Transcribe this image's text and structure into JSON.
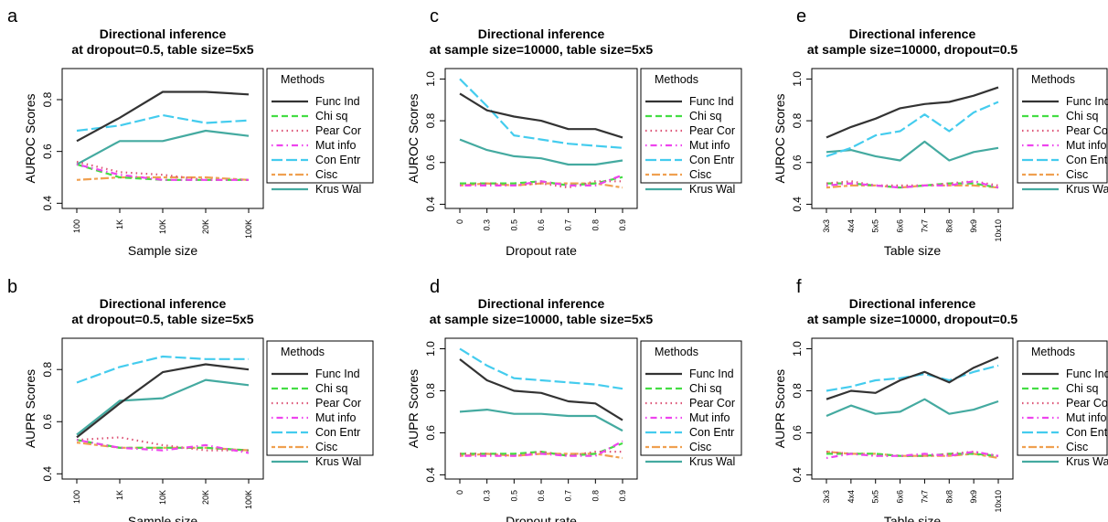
{
  "legend": {
    "title": "Methods",
    "items": [
      {
        "name": "Func Ind",
        "color": "#333333",
        "dash": "solid"
      },
      {
        "name": "Chi sq",
        "color": "#44dd44",
        "dash": "dashed"
      },
      {
        "name": "Pear Cor",
        "color": "#dd5577",
        "dash": "dotted"
      },
      {
        "name": "Mut info",
        "color": "#ee44ee",
        "dash": "dotdash"
      },
      {
        "name": "Con Entr",
        "color": "#44ccee",
        "dash": "longdash"
      },
      {
        "name": "Cisc",
        "color": "#f0a050",
        "dash": "twodash"
      },
      {
        "name": "Krus Wal",
        "color": "#44aaa0",
        "dash": "solid"
      }
    ]
  },
  "chart_data": [
    {
      "panel": "a",
      "type": "line",
      "title": [
        "Directional inference",
        "at dropout=0.5, table size=5x5"
      ],
      "xlabel": "Sample size",
      "ylabel": "AUROC Scores",
      "categories": [
        "100",
        "1K",
        "10K",
        "20K",
        "100K"
      ],
      "ylim": [
        0.38,
        0.92
      ],
      "yticks": [
        "0.4",
        "0.6",
        "0.8"
      ],
      "series": [
        {
          "name": "Func Ind",
          "values": [
            0.64,
            0.73,
            0.83,
            0.83,
            0.82
          ]
        },
        {
          "name": "Chi sq",
          "values": [
            0.55,
            0.5,
            0.49,
            0.49,
            0.49
          ]
        },
        {
          "name": "Pear Cor",
          "values": [
            0.56,
            0.52,
            0.51,
            0.49,
            0.49
          ]
        },
        {
          "name": "Mut info",
          "values": [
            0.55,
            0.51,
            0.49,
            0.49,
            0.49
          ]
        },
        {
          "name": "Con Entr",
          "values": [
            0.68,
            0.7,
            0.74,
            0.71,
            0.72
          ]
        },
        {
          "name": "Cisc",
          "values": [
            0.49,
            0.5,
            0.5,
            0.5,
            0.49
          ]
        },
        {
          "name": "Krus Wal",
          "values": [
            0.55,
            0.64,
            0.64,
            0.68,
            0.66
          ]
        }
      ]
    },
    {
      "panel": "c",
      "type": "line",
      "title": [
        "Directional inference",
        "at sample size=10000, table size=5x5"
      ],
      "xlabel": "Dropout rate",
      "ylabel": "AUROC Scores",
      "categories": [
        "0",
        "0.3",
        "0.5",
        "0.6",
        "0.7",
        "0.8",
        "0.9"
      ],
      "ylim": [
        0.38,
        1.05
      ],
      "yticks": [
        "0.4",
        "0.6",
        "0.8",
        "1.0"
      ],
      "series": [
        {
          "name": "Func Ind",
          "values": [
            0.93,
            0.85,
            0.82,
            0.8,
            0.76,
            0.76,
            0.72
          ]
        },
        {
          "name": "Chi sq",
          "values": [
            0.5,
            0.5,
            0.5,
            0.51,
            0.49,
            0.5,
            0.53
          ]
        },
        {
          "name": "Pear Cor",
          "values": [
            0.49,
            0.5,
            0.49,
            0.5,
            0.48,
            0.51,
            0.51
          ]
        },
        {
          "name": "Mut info",
          "values": [
            0.49,
            0.49,
            0.49,
            0.51,
            0.49,
            0.49,
            0.54
          ]
        },
        {
          "name": "Con Entr",
          "values": [
            1.0,
            0.87,
            0.73,
            0.71,
            0.69,
            0.68,
            0.67
          ]
        },
        {
          "name": "Cisc",
          "values": [
            0.49,
            0.5,
            0.49,
            0.5,
            0.5,
            0.5,
            0.48
          ]
        },
        {
          "name": "Krus Wal",
          "values": [
            0.71,
            0.66,
            0.63,
            0.62,
            0.59,
            0.59,
            0.61
          ]
        }
      ]
    },
    {
      "panel": "e",
      "type": "line",
      "title": [
        "Directional inference",
        "at sample size=10000, dropout=0.5"
      ],
      "xlabel": "Table size",
      "ylabel": "AUROC Scores",
      "categories": [
        "3x3",
        "4x4",
        "5x5",
        "6x6",
        "7x7",
        "8x8",
        "9x9",
        "10x10"
      ],
      "ylim": [
        0.38,
        1.05
      ],
      "yticks": [
        "0.4",
        "0.6",
        "0.8",
        "1.0"
      ],
      "series": [
        {
          "name": "Func Ind",
          "values": [
            0.72,
            0.77,
            0.81,
            0.86,
            0.88,
            0.89,
            0.92,
            0.96
          ]
        },
        {
          "name": "Chi sq",
          "values": [
            0.5,
            0.5,
            0.49,
            0.48,
            0.49,
            0.5,
            0.5,
            0.48
          ]
        },
        {
          "name": "Pear Cor",
          "values": [
            0.5,
            0.51,
            0.49,
            0.49,
            0.49,
            0.5,
            0.51,
            0.49
          ]
        },
        {
          "name": "Mut info",
          "values": [
            0.49,
            0.5,
            0.49,
            0.48,
            0.49,
            0.49,
            0.51,
            0.48
          ]
        },
        {
          "name": "Con Entr",
          "values": [
            0.63,
            0.67,
            0.73,
            0.75,
            0.83,
            0.75,
            0.84,
            0.89
          ]
        },
        {
          "name": "Cisc",
          "values": [
            0.48,
            0.49,
            0.49,
            0.48,
            0.49,
            0.49,
            0.49,
            0.48
          ]
        },
        {
          "name": "Krus Wal",
          "values": [
            0.65,
            0.66,
            0.63,
            0.61,
            0.7,
            0.61,
            0.65,
            0.67
          ]
        }
      ]
    },
    {
      "panel": "b",
      "type": "line",
      "title": [
        "Directional inference",
        "at dropout=0.5, table size=5x5"
      ],
      "xlabel": "Sample size",
      "ylabel": "AUPR Scores",
      "categories": [
        "100",
        "1K",
        "10K",
        "20K",
        "100K"
      ],
      "ylim": [
        0.38,
        0.92
      ],
      "yticks": [
        "0.4",
        "0.6",
        "0.8"
      ],
      "series": [
        {
          "name": "Func Ind",
          "values": [
            0.54,
            0.67,
            0.79,
            0.82,
            0.8
          ]
        },
        {
          "name": "Chi sq",
          "values": [
            0.53,
            0.5,
            0.5,
            0.5,
            0.49
          ]
        },
        {
          "name": "Pear Cor",
          "values": [
            0.53,
            0.54,
            0.51,
            0.49,
            0.49
          ]
        },
        {
          "name": "Mut info",
          "values": [
            0.53,
            0.5,
            0.49,
            0.51,
            0.48
          ]
        },
        {
          "name": "Con Entr",
          "values": [
            0.75,
            0.81,
            0.85,
            0.84,
            0.84
          ]
        },
        {
          "name": "Cisc",
          "values": [
            0.52,
            0.5,
            0.5,
            0.5,
            0.49
          ]
        },
        {
          "name": "Krus Wal",
          "values": [
            0.55,
            0.68,
            0.69,
            0.76,
            0.74
          ]
        }
      ]
    },
    {
      "panel": "d",
      "type": "line",
      "title": [
        "Directional inference",
        "at sample size=10000, table size=5x5"
      ],
      "xlabel": "Dropout rate",
      "ylabel": "AUPR Scores",
      "categories": [
        "0",
        "0.3",
        "0.5",
        "0.6",
        "0.7",
        "0.8",
        "0.9"
      ],
      "ylim": [
        0.38,
        1.05
      ],
      "yticks": [
        "0.4",
        "0.6",
        "0.8",
        "1.0"
      ],
      "series": [
        {
          "name": "Func Ind",
          "values": [
            0.95,
            0.85,
            0.8,
            0.79,
            0.75,
            0.74,
            0.66
          ]
        },
        {
          "name": "Chi sq",
          "values": [
            0.5,
            0.5,
            0.5,
            0.51,
            0.49,
            0.5,
            0.55
          ]
        },
        {
          "name": "Pear Cor",
          "values": [
            0.5,
            0.5,
            0.49,
            0.51,
            0.49,
            0.51,
            0.51
          ]
        },
        {
          "name": "Mut info",
          "values": [
            0.49,
            0.49,
            0.49,
            0.5,
            0.49,
            0.49,
            0.56
          ]
        },
        {
          "name": "Con Entr",
          "values": [
            1.0,
            0.92,
            0.86,
            0.85,
            0.84,
            0.83,
            0.81
          ]
        },
        {
          "name": "Cisc",
          "values": [
            0.49,
            0.5,
            0.49,
            0.5,
            0.5,
            0.5,
            0.48
          ]
        },
        {
          "name": "Krus Wal",
          "values": [
            0.7,
            0.71,
            0.69,
            0.69,
            0.68,
            0.68,
            0.61
          ]
        }
      ]
    },
    {
      "panel": "f",
      "type": "line",
      "title": [
        "Directional inference",
        "at sample size=10000, dropout=0.5"
      ],
      "xlabel": "Table size",
      "ylabel": "AUPR Scores",
      "categories": [
        "3x3",
        "4x4",
        "5x5",
        "6x6",
        "7x7",
        "8x8",
        "9x9",
        "10x10"
      ],
      "ylim": [
        0.38,
        1.05
      ],
      "yticks": [
        "0.4",
        "0.6",
        "0.8",
        "1.0"
      ],
      "series": [
        {
          "name": "Func Ind",
          "values": [
            0.76,
            0.8,
            0.79,
            0.85,
            0.89,
            0.84,
            0.91,
            0.96
          ]
        },
        {
          "name": "Chi sq",
          "values": [
            0.5,
            0.5,
            0.5,
            0.49,
            0.49,
            0.5,
            0.5,
            0.49
          ]
        },
        {
          "name": "Pear Cor",
          "values": [
            0.51,
            0.5,
            0.49,
            0.49,
            0.49,
            0.5,
            0.51,
            0.49
          ]
        },
        {
          "name": "Mut info",
          "values": [
            0.48,
            0.5,
            0.49,
            0.49,
            0.5,
            0.49,
            0.51,
            0.49
          ]
        },
        {
          "name": "Con Entr",
          "values": [
            0.8,
            0.82,
            0.85,
            0.86,
            0.88,
            0.85,
            0.89,
            0.92
          ]
        },
        {
          "name": "Cisc",
          "values": [
            0.51,
            0.5,
            0.5,
            0.49,
            0.49,
            0.49,
            0.5,
            0.48
          ]
        },
        {
          "name": "Krus Wal",
          "values": [
            0.68,
            0.73,
            0.69,
            0.7,
            0.76,
            0.69,
            0.71,
            0.75
          ]
        }
      ]
    }
  ]
}
